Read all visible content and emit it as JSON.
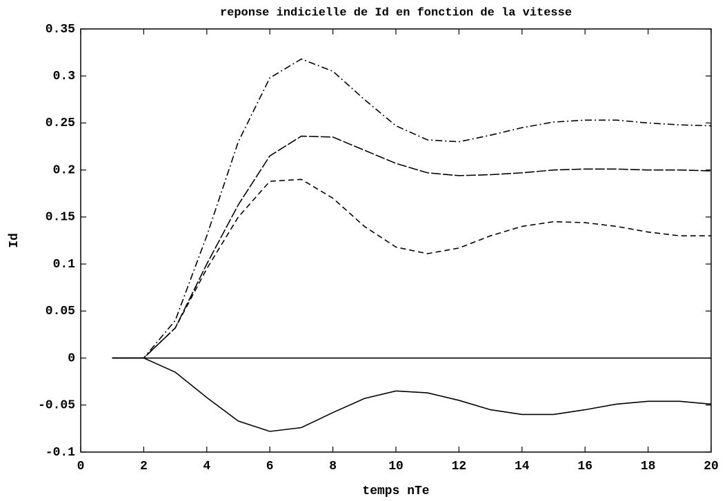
{
  "chart_data": {
    "type": "line",
    "title": "reponse indicielle de Id en fonction de la vitesse",
    "x_label": "temps nTe",
    "y_label": "Id",
    "x": [
      1,
      2,
      3,
      4,
      5,
      6,
      7,
      8,
      9,
      10,
      11,
      12,
      13,
      14,
      15,
      16,
      17,
      18,
      19,
      20
    ],
    "series": [
      {
        "color": "#000000",
        "dash": "dashdot",
        "values": [
          0,
          0,
          0.04,
          0.13,
          0.23,
          0.298,
          0.318,
          0.305,
          0.275,
          0.247,
          0.232,
          0.23,
          0.237,
          0.245,
          0.251,
          0.253,
          0.253,
          0.25,
          0.248,
          0.247
        ]
      },
      {
        "color": "#000000",
        "dash": "longdash",
        "values": [
          0,
          0,
          0.032,
          0.1,
          0.163,
          0.215,
          0.236,
          0.235,
          0.221,
          0.207,
          0.197,
          0.194,
          0.195,
          0.197,
          0.2,
          0.201,
          0.201,
          0.2,
          0.2,
          0.199
        ]
      },
      {
        "color": "#000000",
        "dash": "dashed",
        "values": [
          0,
          0,
          0.032,
          0.095,
          0.15,
          0.188,
          0.19,
          0.17,
          0.14,
          0.118,
          0.111,
          0.117,
          0.13,
          0.14,
          0.145,
          0.144,
          0.14,
          0.134,
          0.13,
          0.13
        ]
      },
      {
        "color": "#000000",
        "dash": "solid",
        "values": [
          0,
          0,
          0,
          0,
          0,
          0,
          0,
          0,
          0,
          0,
          0,
          0,
          0,
          0,
          0,
          0,
          0,
          0,
          0,
          0
        ]
      },
      {
        "color": "#000000",
        "dash": "solid",
        "values": [
          0,
          0,
          -0.015,
          -0.042,
          -0.067,
          -0.078,
          -0.074,
          -0.058,
          -0.043,
          -0.035,
          -0.037,
          -0.045,
          -0.055,
          -0.06,
          -0.06,
          -0.055,
          -0.049,
          -0.046,
          -0.046,
          -0.049
        ]
      }
    ],
    "xlim": [
      0,
      20
    ],
    "xticks": [
      0,
      2,
      4,
      6,
      8,
      10,
      12,
      14,
      16,
      18,
      20
    ],
    "ylim": [
      -0.1,
      0.35
    ],
    "yticks": [
      -0.1,
      -0.05,
      0,
      0.05,
      0.1,
      0.15,
      0.2,
      0.25,
      0.3,
      0.35
    ],
    "grid": false
  }
}
